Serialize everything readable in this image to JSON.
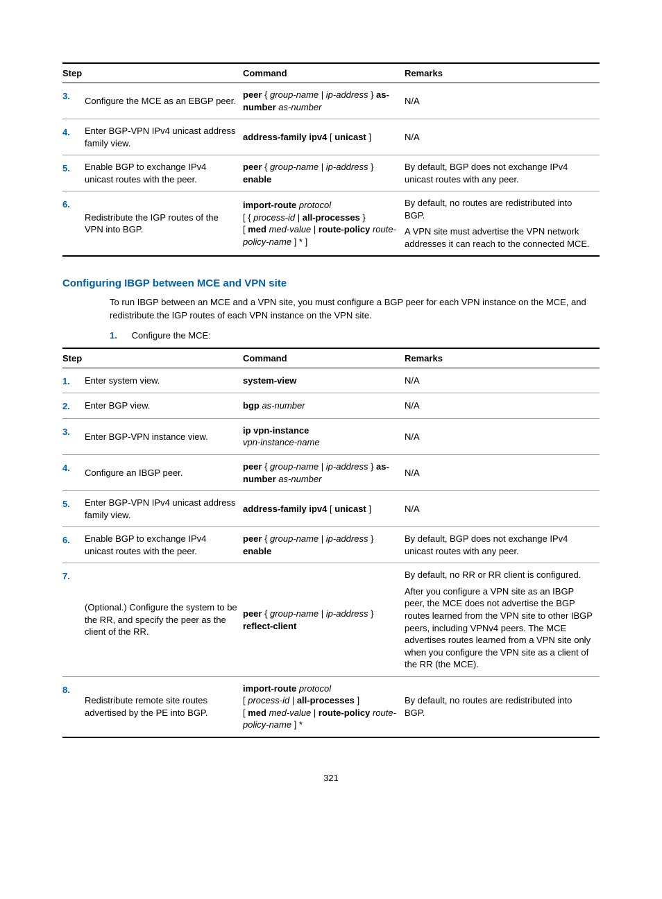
{
  "page_number": "321",
  "section_heading": "Configuring IBGP between MCE and VPN site",
  "intro_text": "To run IBGP between an MCE and a VPN site, you must configure a BGP peer for each VPN instance on the MCE, and redistribute the IGP routes of each VPN instance on the VPN site.",
  "ol_item_number": "1.",
  "ol_item_text": "Configure the MCE:",
  "table1": {
    "headers": {
      "step": "Step",
      "command": "Command",
      "remarks": "Remarks"
    },
    "rows": [
      {
        "num": "3.",
        "step": "Configure the MCE as an EBGP peer.",
        "cmd_html": "<b>peer</b> { <i>group-name</i> | <i>ip-address</i> } <b>as-number</b> <i>as-number</i>",
        "remarks": [
          "N/A"
        ]
      },
      {
        "num": "4.",
        "step": "Enter BGP-VPN IPv4 unicast address family view.",
        "cmd_html": "<b>address-family ipv4</b> [ <b>unicast</b> ]",
        "remarks": [
          "N/A"
        ]
      },
      {
        "num": "5.",
        "step": "Enable BGP to exchange IPv4 unicast routes with the peer.",
        "cmd_html": "<b>peer</b> { <i>group-name</i> | <i>ip-address</i> } <b>enable</b>",
        "remarks": [
          "By default, BGP does not exchange IPv4 unicast routes with any peer."
        ]
      },
      {
        "num": "6.",
        "step": "Redistribute the IGP routes of the VPN into BGP.",
        "cmd_html": "<b>import-route</b> <i>protocol</i><br>[ { <i>process-id</i> | <b>all-processes</b> }<br>[ <b>med</b> <i>med-value</i> | <b>route-policy</b> <i>route-policy-name</i> ] * ]",
        "remarks": [
          "By default, no routes are redistributed into BGP.",
          "A VPN site must advertise the VPN network addresses it can reach to the connected MCE."
        ]
      }
    ]
  },
  "table2": {
    "headers": {
      "step": "Step",
      "command": "Command",
      "remarks": "Remarks"
    },
    "rows": [
      {
        "num": "1.",
        "step": "Enter system view.",
        "cmd_html": "<b>system-view</b>",
        "remarks": [
          "N/A"
        ]
      },
      {
        "num": "2.",
        "step": "Enter BGP view.",
        "cmd_html": "<b>bgp</b> <i>as-number</i>",
        "remarks": [
          "N/A"
        ]
      },
      {
        "num": "3.",
        "step": "Enter BGP-VPN instance view.",
        "cmd_html": "<b>ip vpn-instance</b><br><i>vpn-instance-name</i>",
        "remarks": [
          "N/A"
        ]
      },
      {
        "num": "4.",
        "step": "Configure an IBGP peer.",
        "cmd_html": "<b>peer</b> { <i>group-name</i> | <i>ip-address</i> } <b>as-number</b> <i>as-number</i>",
        "remarks": [
          "N/A"
        ]
      },
      {
        "num": "5.",
        "step": "Enter BGP-VPN IPv4 unicast address family view.",
        "cmd_html": "<b>address-family ipv4</b> [ <b>unicast</b> ]",
        "remarks": [
          "N/A"
        ]
      },
      {
        "num": "6.",
        "step": "Enable BGP to exchange IPv4 unicast routes with the peer.",
        "cmd_html": "<b>peer</b> { <i>group-name</i> | <i>ip-address</i> } <b>enable</b>",
        "remarks": [
          "By default, BGP does not exchange IPv4 unicast routes with any peer."
        ]
      },
      {
        "num": "7.",
        "step": "(Optional.) Configure the system to be the RR, and specify the peer as the client of the RR.",
        "cmd_html": "<b>peer</b> { <i>group-name</i> | <i>ip-address</i> } <b>reflect-client</b>",
        "remarks": [
          "By default, no RR or RR client is configured.",
          "After you configure a VPN site as an IBGP peer, the MCE does not advertise the BGP routes learned from the VPN site to other IBGP peers, including VPNv4 peers. The MCE advertises routes learned from a VPN site only when you configure the VPN site as a client of the RR (the MCE)."
        ]
      },
      {
        "num": "8.",
        "step": "Redistribute remote site routes advertised by the PE into BGP.",
        "cmd_html": "<b>import-route</b> <i>protocol</i><br>[ <i>process-id</i> | <b>all-processes</b> ]<br>[ <b>med</b> <i>med-value</i> | <b>route-policy</b> <i>route-policy-name</i> ] *",
        "remarks": [
          "By default, no routes are redistributed into BGP."
        ]
      }
    ]
  }
}
